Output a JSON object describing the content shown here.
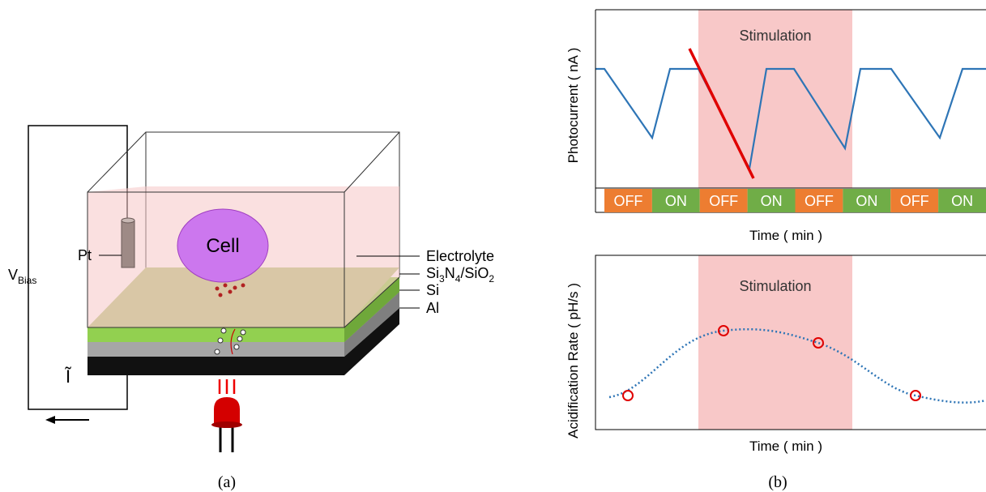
{
  "panel_a": {
    "cell": "Cell",
    "pt": "Pt",
    "v_bias": {
      "main": "V",
      "sub": "Bias"
    },
    "current": "Ĩ",
    "layers": {
      "electrolyte": "Electrolyte",
      "insulator": [
        "Si",
        "3",
        "N",
        "4",
        "/SiO",
        "2"
      ],
      "si": "Si",
      "al": "Al"
    },
    "caption": "(a)"
  },
  "panel_b": {
    "top": {
      "band_label": "Stimulation",
      "y_label": "Photocurrent ( nA )",
      "x_label": "Time ( min )",
      "states": [
        "OFF",
        "ON",
        "OFF",
        "ON",
        "OFF",
        "ON",
        "OFF",
        "ON"
      ]
    },
    "bottom": {
      "band_label": "Stimulation",
      "y_label": "Acidification Rate ( pH/s )",
      "x_label": "Time ( min )"
    },
    "caption": "(b)"
  }
}
